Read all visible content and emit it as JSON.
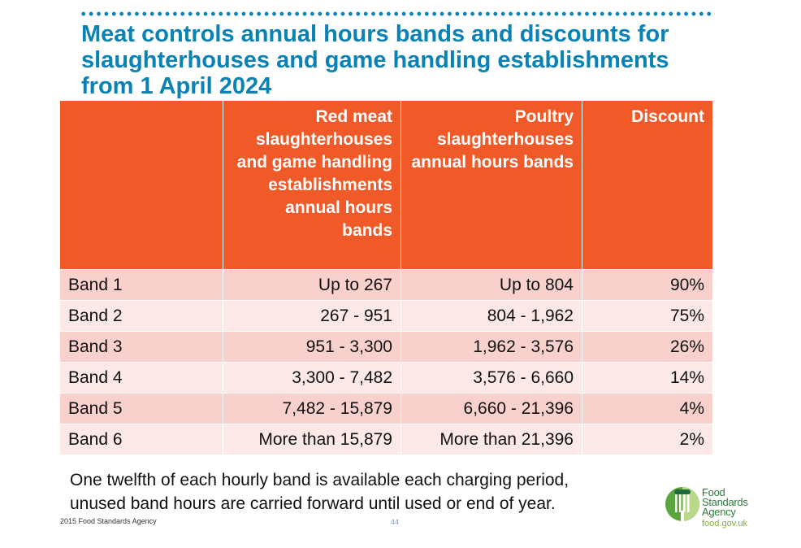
{
  "title": "Meat controls annual hours bands and discounts for slaughterhouses and game handling establishments from 1 April 2024",
  "table": {
    "headers": [
      "",
      "Red meat slaughterhouses and game handling establishments annual hours bands",
      "Poultry slaughterhouses annual hours bands",
      "Discount"
    ],
    "rows": [
      [
        "Band 1",
        "Up to 267",
        "Up to 804",
        "90%"
      ],
      [
        "Band 2",
        "267 - 951",
        "804 - 1,962",
        "75%"
      ],
      [
        "Band 3",
        "951 - 3,300",
        "1,962 - 3,576",
        "26%"
      ],
      [
        "Band 4",
        "3,300 - 7,482",
        "3,576 - 6,660",
        "14%"
      ],
      [
        "Band 5",
        "7,482 - 15,879",
        "6,660 - 21,396",
        "4%"
      ],
      [
        "Band 6",
        "More than 15,879",
        "More than 21,396",
        "2%"
      ]
    ]
  },
  "note_line1": "One twelfth of each hourly band is available each charging period,",
  "note_line2": "unused band hours are carried forward until used or end of year.",
  "footer": {
    "copyright": "2015 Food Standards Agency",
    "page": "44"
  },
  "logo": {
    "name": "Food Standards Agency",
    "line1": "Food",
    "line2": "Standards",
    "line3": "Agency",
    "url": "food.gov.uk"
  },
  "colors": {
    "title": "#0a83b4",
    "header": "#f05a28",
    "row_odd": "#f8d1cd",
    "row_even": "#fce9e7"
  }
}
